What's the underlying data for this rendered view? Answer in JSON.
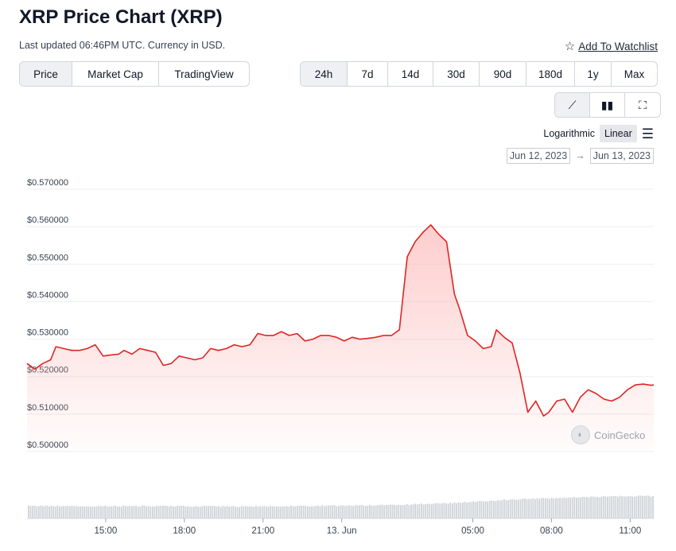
{
  "page": {
    "title": "XRP Price Chart (XRP)",
    "updated_text": "Last updated 06:46PM UTC. Currency in USD.",
    "watchlist_label": "Add To Watchlist"
  },
  "chart_tabs": [
    "Price",
    "Market Cap",
    "TradingView"
  ],
  "active_chart_tab": "Price",
  "ranges": [
    "24h",
    "7d",
    "14d",
    "30d",
    "90d",
    "180d",
    "1y",
    "Max"
  ],
  "active_range": "24h",
  "view_buttons": [
    {
      "name": "line-chart-icon",
      "glyph": "⟋"
    },
    {
      "name": "candlestick-icon",
      "glyph": "▮▮"
    },
    {
      "name": "fullscreen-icon",
      "glyph": "⛶"
    }
  ],
  "active_view": "line-chart-icon",
  "scale_options": [
    "Logarithmic",
    "Linear"
  ],
  "active_scale": "Linear",
  "date_range": {
    "from": "Jun 12, 2023",
    "to": "Jun 13, 2023",
    "arrow": "→"
  },
  "watermark": "CoinGecko",
  "colors": {
    "line": "#e02424",
    "fill_top": "#fca5a5",
    "volume": "#cfd3d8",
    "grid": "#eceef1"
  },
  "chart_data": {
    "type": "area",
    "title": "XRP Price Chart (XRP)",
    "xlabel": "",
    "ylabel": "",
    "x_unit": "hours",
    "xlim": [
      12.0,
      35.9
    ],
    "ylim": [
      0.5,
      0.57
    ],
    "yticks": [
      "$0.500000",
      "$0.510000",
      "$0.520000",
      "$0.530000",
      "$0.540000",
      "$0.550000",
      "$0.560000",
      "$0.570000"
    ],
    "ytick_values": [
      0.5,
      0.51,
      0.52,
      0.53,
      0.54,
      0.55,
      0.56,
      0.57
    ],
    "xticks": [
      "15:00",
      "18:00",
      "21:00",
      "13. Jun",
      "05:00",
      "08:00",
      "11:00"
    ],
    "xtick_values": [
      15,
      18,
      21,
      24,
      29,
      32,
      35
    ],
    "grid": true,
    "series": [
      {
        "x": [
          12.0,
          12.3,
          12.6,
          12.9,
          13.1,
          13.4,
          13.7,
          14.0,
          14.3,
          14.6,
          14.9,
          15.2,
          15.5,
          15.7,
          16.0,
          16.3,
          16.6,
          16.9,
          17.2,
          17.5,
          17.8,
          18.1,
          18.4,
          18.7,
          19.0,
          19.3,
          19.6,
          19.9,
          20.2,
          20.5,
          20.8,
          21.1,
          21.4,
          21.7,
          22.0,
          22.3,
          22.6,
          22.9,
          23.2,
          23.5,
          23.8,
          24.1,
          24.4,
          24.7,
          25.0,
          25.3,
          25.6,
          25.9,
          26.2,
          26.5,
          26.8,
          27.1,
          27.4,
          27.7,
          28.0,
          28.3,
          28.5,
          28.8,
          29.1,
          29.4,
          29.7,
          29.9,
          30.2,
          30.5,
          30.8,
          31.1,
          31.4,
          31.7,
          31.9,
          32.2,
          32.5,
          32.8,
          33.1,
          33.4,
          33.7,
          34.0,
          34.3,
          34.6,
          34.9,
          35.2,
          35.5,
          35.8,
          35.9
        ],
        "values": [
          0.5235,
          0.522,
          0.5235,
          0.5245,
          0.528,
          0.5275,
          0.527,
          0.527,
          0.5275,
          0.5285,
          0.5255,
          0.5258,
          0.526,
          0.527,
          0.526,
          0.5275,
          0.527,
          0.5265,
          0.523,
          0.5235,
          0.5255,
          0.525,
          0.5245,
          0.525,
          0.5275,
          0.527,
          0.5275,
          0.5285,
          0.528,
          0.5285,
          0.5315,
          0.531,
          0.531,
          0.532,
          0.531,
          0.5315,
          0.5295,
          0.53,
          0.531,
          0.531,
          0.5305,
          0.5295,
          0.5305,
          0.53,
          0.5302,
          0.5305,
          0.531,
          0.531,
          0.5325,
          0.552,
          0.556,
          0.5585,
          0.5605,
          0.558,
          0.556,
          0.542,
          0.538,
          0.531,
          0.5295,
          0.5275,
          0.528,
          0.5325,
          0.5305,
          0.529,
          0.521,
          0.5105,
          0.5135,
          0.5095,
          0.5105,
          0.5135,
          0.514,
          0.5105,
          0.5145,
          0.5165,
          0.5155,
          0.514,
          0.5135,
          0.5145,
          0.5165,
          0.5178,
          0.518,
          0.5177,
          0.5178
        ]
      }
    ],
    "volume_series": {
      "x": [
        12,
        14,
        16,
        18,
        20,
        22,
        24,
        26,
        28,
        29,
        30,
        31,
        32,
        33,
        34,
        35,
        35.9
      ],
      "values": [
        32,
        31,
        31,
        31,
        30,
        31,
        32,
        34,
        38,
        42,
        46,
        49,
        51,
        53,
        55,
        56,
        56
      ]
    }
  }
}
